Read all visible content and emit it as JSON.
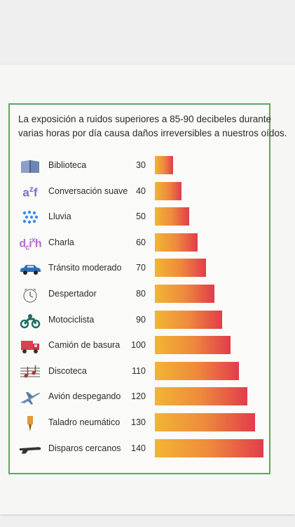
{
  "title_lines": [
    "La exposición a ruidos superiores a 85-90 decibeles durante",
    "varias horas por día causa daños irreversibles a nuestros oídos."
  ],
  "chart_data": {
    "type": "bar",
    "orientation": "horizontal",
    "categories": [
      "Biblioteca",
      "Conversación suave",
      "Lluvia",
      "Charla",
      "Tránsito moderado",
      "Despertador",
      "Motociclista",
      "Camión de basura",
      "Discoteca",
      "Avión despegando",
      "Taladro neumático",
      "Disparos cercanos"
    ],
    "values": [
      30,
      40,
      50,
      60,
      70,
      80,
      90,
      100,
      110,
      120,
      130,
      140
    ],
    "xlim": [
      20,
      140
    ],
    "icons": [
      "book-icon",
      "letters-icon",
      "rain-icon",
      "speech-icon",
      "car-icon",
      "alarm-clock-icon",
      "motorcycle-icon",
      "garbage-truck-icon",
      "music-notes-icon",
      "airplane-icon",
      "drill-icon",
      "gun-icon"
    ],
    "colors": {
      "bar_start": "#f2b534",
      "bar_mid": "#ee8a3c",
      "bar_end": "#e23c4c",
      "frame": "#5aa86a"
    }
  }
}
